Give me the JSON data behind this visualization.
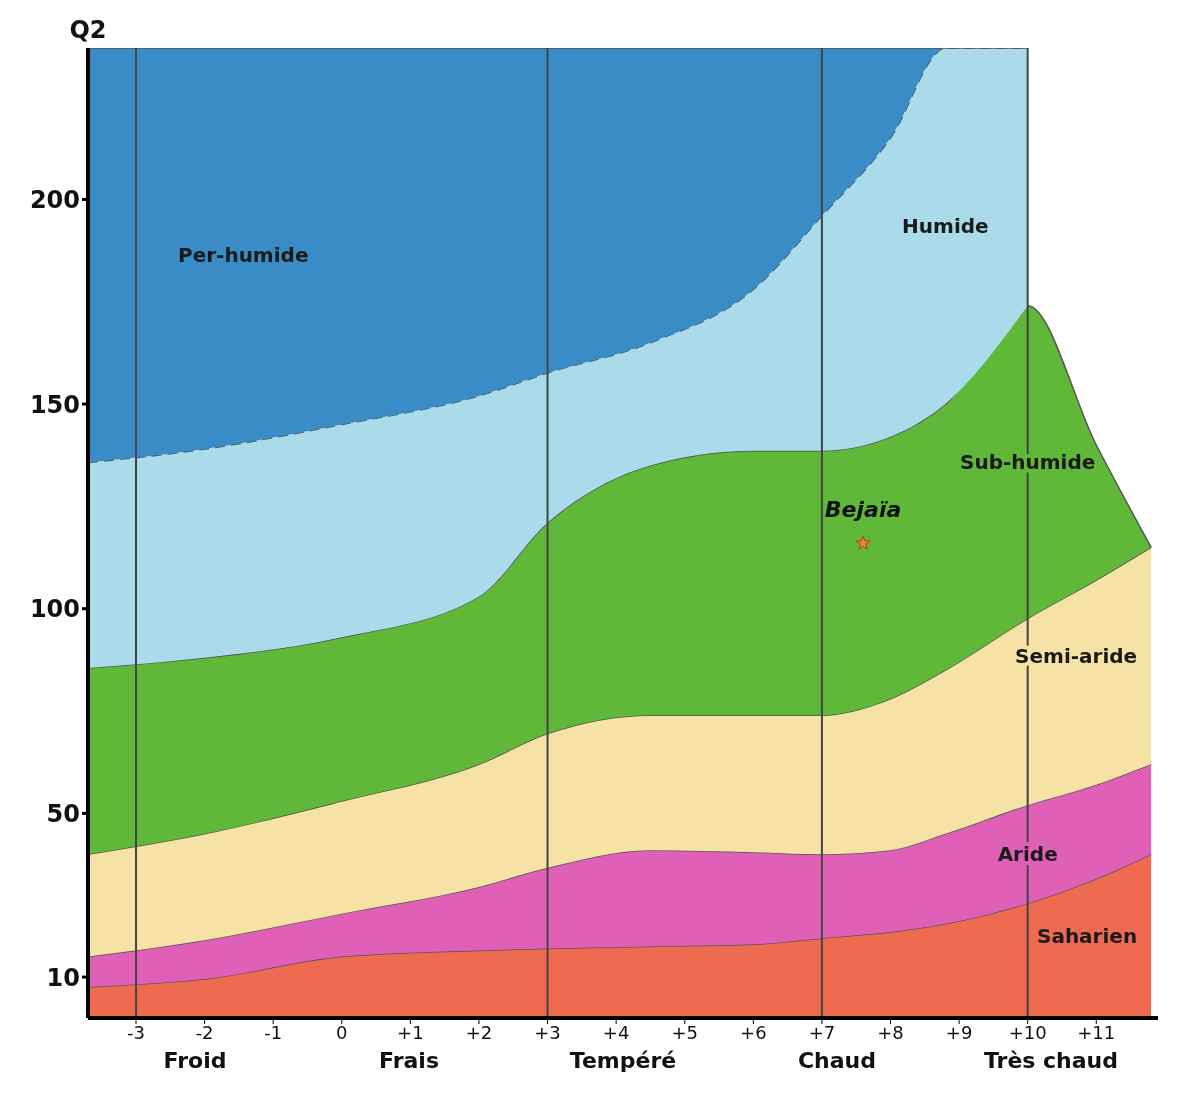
{
  "chart_data": {
    "type": "area",
    "stacked": true,
    "ylabel": "Q2",
    "x": [
      -3.7,
      -2,
      0,
      2,
      3,
      4.5,
      6,
      7,
      8,
      8.8,
      10,
      11,
      11.8
    ],
    "series": [
      {
        "name": "Saharien",
        "color": "#ee6a50",
        "values": [
          7.6,
          9.5,
          15,
          16.5,
          17,
          17.5,
          18,
          19.5,
          21,
          23,
          28,
          34,
          40
        ]
      },
      {
        "name": "Aride",
        "color": "#e060b8",
        "values": [
          7.4,
          9.5,
          10.5,
          15.5,
          19.7,
          23.5,
          22.5,
          20.5,
          20,
          22,
          24,
          23,
          22
        ]
      },
      {
        "name": "Semi-aride",
        "color": "#f7e2a6",
        "values": [
          25,
          26,
          27.5,
          30,
          32.8,
          33,
          33.5,
          34,
          37,
          40,
          45.6,
          50,
          53
        ]
      },
      {
        "name": "Sub-humide",
        "color": "#5fb838",
        "values": [
          45.5,
          43,
          40,
          41,
          51.5,
          61,
          64.6,
          64.6,
          64,
          65,
          76.4,
          33,
          0
        ]
      },
      {
        "name": "Humide",
        "color": "#a9dbea",
        "line_style": "dashed",
        "values": [
          50.2,
          51,
          52,
          49,
          36.6,
          30,
          39.4,
          57.4,
          73,
          87,
          63,
          null,
          null
        ]
      },
      {
        "name": "Per-humide",
        "color": "#3a8cc6",
        "values": [
          101.3,
          98,
          92,
          85,
          79.4,
          72,
          59,
          41,
          22,
          0,
          0,
          null,
          null
        ]
      },
      {
        "type": "scatter",
        "name": "Bejaïa",
        "color": "#f08a24",
        "marker": "star",
        "x": [
          7.6
        ],
        "values": [
          116
        ]
      }
    ],
    "xlim": [
      -3.7,
      11.9
    ],
    "xticks": [
      -3,
      -2,
      -1,
      0,
      {
        "value": 1,
        "label": "+1"
      },
      {
        "value": 2,
        "label": "+2"
      },
      {
        "value": 3,
        "label": "+3"
      },
      {
        "value": 4,
        "label": "+4"
      },
      {
        "value": 5,
        "label": "+5"
      },
      {
        "value": 6,
        "label": "+6"
      },
      {
        "value": 7,
        "label": "+7"
      },
      {
        "value": 8,
        "label": "+8"
      },
      {
        "value": 9,
        "label": "+9"
      },
      {
        "value": 10,
        "label": "+10"
      },
      {
        "value": 11,
        "label": "+11"
      }
    ],
    "ylim": [
      0,
      237
    ],
    "yticks": [
      10,
      50,
      100,
      150,
      200
    ],
    "ref_lines": [
      {
        "axis": "x",
        "value": -3
      },
      {
        "axis": "x",
        "value": 3
      },
      {
        "axis": "x",
        "value": 7
      },
      {
        "axis": "x",
        "value": 10
      }
    ],
    "annotations": [
      "Froid",
      "Frais",
      "Tempéré",
      "Chaud",
      "Très chaud"
    ]
  }
}
